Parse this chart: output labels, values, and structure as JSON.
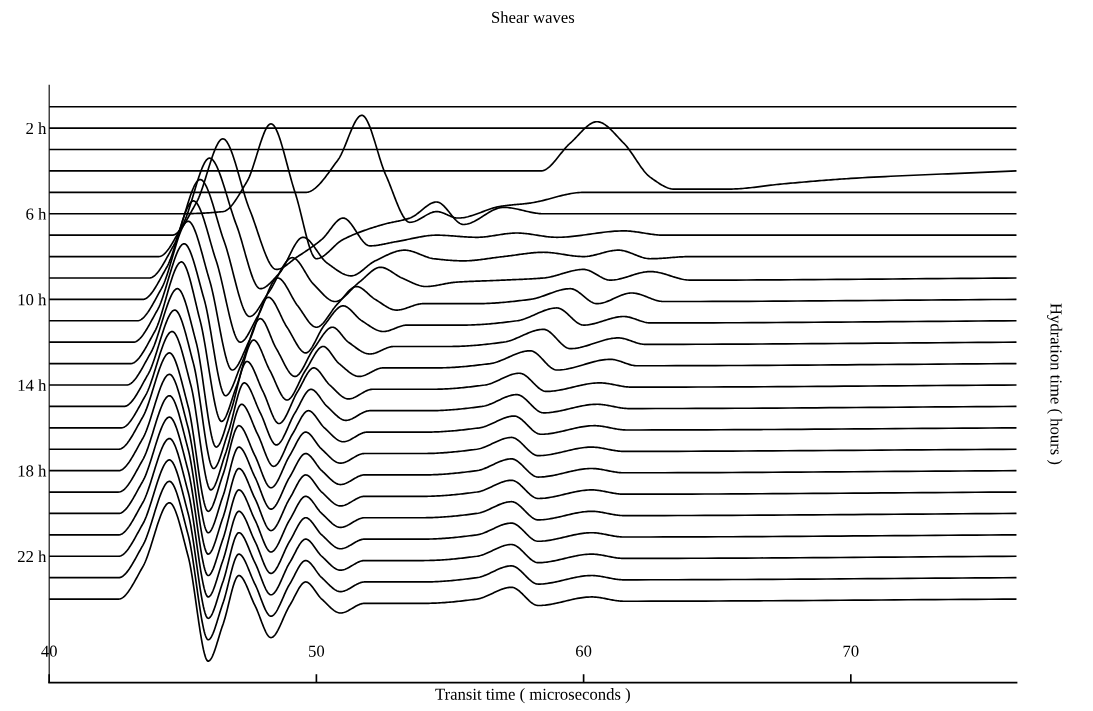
{
  "chart_data": {
    "type": "line",
    "title": "Shear waves",
    "xlabel": "Transit time ( microseconds )",
    "ylabel": "Hydration time ( hours )",
    "xlim": [
      40,
      76.2
    ],
    "xticks": [
      40,
      50,
      60,
      70
    ],
    "ylim": [
      27.9,
      0
    ],
    "yticks": [
      {
        "value": 2,
        "label": "2 h"
      },
      {
        "value": 6,
        "label": "6 h"
      },
      {
        "value": 10,
        "label": "10 h"
      },
      {
        "value": 14,
        "label": "14 h"
      },
      {
        "value": 18,
        "label": "18 h"
      },
      {
        "value": 22,
        "label": "22 h"
      }
    ],
    "grid": false,
    "x": [
      40,
      42.6,
      43.5,
      44.5,
      45.2,
      45.95,
      46.5,
      47.1,
      47.7,
      48.3,
      49.0,
      49.6,
      50.2,
      50.9,
      51.8,
      54.0,
      56.0,
      57.3,
      58.3,
      60.3,
      61.5,
      76.2
    ],
    "series": [
      {
        "color": "#000000",
        "x": [
          40,
          76.2
        ],
        "values": [
          1,
          1
        ]
      },
      {
        "color": "#000000",
        "x": [
          40,
          76.2
        ],
        "values": [
          2,
          2
        ]
      },
      {
        "color": "#000000",
        "x": [
          40,
          76.2
        ],
        "values": [
          3,
          3
        ]
      },
      {
        "color": "#000000",
        "x": [
          40,
          58.4,
          59.5,
          60.5,
          61.5,
          62.5,
          63.4,
          65.4,
          67.5,
          70,
          76.2
        ],
        "values": [
          4,
          4,
          2.7,
          1.7,
          2.7,
          4.3,
          4.85,
          4.85,
          4.6,
          4.35,
          4
        ]
      },
      {
        "color": "#000000",
        "x": [
          40,
          49.6,
          50.8,
          51.7,
          52.6,
          53.5,
          54.5,
          55.3,
          56.9,
          58,
          60,
          76.2
        ],
        "values": [
          5,
          5,
          3.5,
          1.4,
          4.2,
          6.4,
          5.9,
          6.2,
          5.65,
          5.5,
          5,
          5
        ]
      },
      {
        "color": "#000000",
        "x": [
          40,
          44.9,
          46.5,
          47.4,
          48.3,
          49.2,
          50.0,
          51.0,
          52.5,
          53.5,
          54.5,
          55.5,
          57.0,
          58.5,
          76.2
        ],
        "values": [
          6,
          6,
          5.9,
          4.5,
          1.8,
          5,
          8.1,
          7.2,
          6.5,
          6.2,
          5.45,
          6.5,
          5.7,
          6,
          6
        ]
      },
      {
        "color": "#000000",
        "x": [
          40,
          44.6,
          45.5,
          46.5,
          47.5,
          48.5,
          49.3,
          50.2,
          51.0,
          52.0,
          53.0,
          54.5,
          56,
          57.5,
          59,
          61.5,
          63,
          76.2
        ],
        "values": [
          7,
          7,
          5.5,
          2.5,
          5.8,
          8.6,
          8,
          7.2,
          6.2,
          7.5,
          7.3,
          7,
          7.1,
          6.9,
          7.1,
          6.8,
          7,
          7
        ]
      },
      {
        "color": "#000000",
        "x": [
          40,
          44.1,
          45.0,
          46.0,
          47.0,
          47.9,
          48.6,
          49.5,
          50.4,
          51.3,
          52.2,
          53.3,
          54.4,
          55.5,
          57,
          58.5,
          60,
          61.3,
          62.5,
          64,
          76.2
        ],
        "values": [
          8,
          8,
          6.5,
          3.4,
          6.5,
          9.5,
          8.8,
          7.1,
          8.3,
          8.9,
          8.2,
          7.7,
          8.1,
          8.2,
          8,
          7.8,
          8,
          7.7,
          8.1,
          8,
          8
        ]
      },
      {
        "color": "#000000",
        "x": [
          40,
          43.75,
          44.65,
          45.65,
          46.55,
          47.5,
          48.2,
          49.1,
          49.9,
          50.7,
          51.6,
          52.4,
          53.2,
          54.1,
          55.2,
          57,
          58.5,
          60,
          61,
          62.5,
          64,
          76.2
        ],
        "values": [
          9,
          9,
          7.5,
          4.4,
          7.3,
          10.8,
          9.7,
          8.05,
          9.3,
          10.1,
          9.2,
          8.5,
          9,
          9.4,
          9.2,
          9.1,
          9,
          8.6,
          9.1,
          8.7,
          9.1,
          9
        ]
      },
      {
        "color": "#000000",
        "x": [
          40,
          43.5,
          44.4,
          45.4,
          46.25,
          47.15,
          47.8,
          48.55,
          49.3,
          50.0,
          50.8,
          51.5,
          52.2,
          53.0,
          54.0,
          56,
          58,
          59.5,
          60.5,
          61.8,
          63,
          76.2
        ],
        "values": [
          10,
          10,
          8.5,
          5.4,
          8.2,
          12,
          10.8,
          9,
          10.3,
          11.3,
          10.2,
          9.4,
          10,
          10.5,
          10.2,
          10.2,
          10,
          9.5,
          10.2,
          9.7,
          10.1,
          10
        ]
      },
      {
        "color": "#000000",
        "x": [
          40,
          43.3,
          44.2,
          45.2,
          46.0,
          46.85,
          47.5,
          48.2,
          48.9,
          49.6,
          50.3,
          51.0,
          51.7,
          52.5,
          53.4,
          55.5,
          57.5,
          59.0,
          60.0,
          61.5,
          62.5,
          76.2
        ],
        "values": [
          11,
          11,
          9.5,
          6.35,
          9.1,
          13.3,
          11.9,
          9.9,
          11.3,
          12.5,
          11.2,
          10.3,
          11,
          11.5,
          11.2,
          11.2,
          11,
          10.4,
          11.2,
          10.8,
          11.1,
          11
        ]
      },
      {
        "color": "#000000",
        "x": [
          40,
          43.15,
          44.05,
          45.05,
          45.8,
          46.6,
          47.2,
          47.9,
          48.5,
          49.2,
          49.9,
          50.6,
          51.2,
          52.0,
          52.9,
          55,
          57,
          58.5,
          59.5,
          61.3,
          62.3,
          76.2
        ],
        "values": [
          12,
          12,
          10.5,
          7.4,
          10,
          14.5,
          13,
          10.9,
          12.3,
          13.6,
          12.3,
          11.3,
          12,
          12.55,
          12.2,
          12.2,
          12,
          11.4,
          12.3,
          11.8,
          12.1,
          12
        ]
      },
      {
        "color": "#000000",
        "x": [
          40,
          43.05,
          43.95,
          44.95,
          45.65,
          46.45,
          47.0,
          47.65,
          48.25,
          48.9,
          49.6,
          50.25,
          50.85,
          51.6,
          52.5,
          54.5,
          56.5,
          58.0,
          59.0,
          61.0,
          62.0,
          76.2
        ],
        "values": [
          13,
          13,
          11.5,
          8.25,
          11,
          15.7,
          14.1,
          11.9,
          13.3,
          14.7,
          13.3,
          12.2,
          13,
          13.6,
          13.2,
          13.2,
          13,
          12.4,
          13.3,
          12.8,
          13.1,
          13
        ]
      },
      {
        "color": "#000000",
        "x": [
          40,
          42.9,
          43.8,
          44.8,
          45.5,
          46.25,
          46.8,
          47.4,
          48.0,
          48.6,
          49.3,
          49.9,
          50.5,
          51.2,
          52.1,
          54.3,
          56.3,
          57.6,
          58.6,
          60.6,
          61.8,
          76.2
        ],
        "values": [
          14,
          14,
          12.5,
          9.5,
          12,
          16.9,
          15.2,
          12.9,
          14.3,
          15.8,
          14.3,
          13.2,
          14,
          14.65,
          14.2,
          14.2,
          14,
          13.45,
          14.3,
          13.9,
          14.1,
          14
        ]
      },
      {
        "color": "#000000",
        "x": [
          40,
          42.8,
          43.7,
          44.7,
          45.4,
          46.15,
          46.7,
          47.3,
          47.9,
          48.5,
          49.2,
          49.8,
          50.4,
          51.1,
          52.0,
          54.2,
          56.2,
          57.5,
          58.5,
          60.5,
          61.7,
          76.2
        ],
        "values": [
          15,
          15,
          13.5,
          10.5,
          13,
          17.9,
          16.2,
          13.9,
          15.3,
          16.8,
          15.3,
          14.2,
          15,
          15.65,
          15.2,
          15.2,
          15,
          14.45,
          15.3,
          14.9,
          15.1,
          15
        ]
      },
      {
        "color": "#000000",
        "x": [
          40,
          42.7,
          43.6,
          44.6,
          45.3,
          46.05,
          46.6,
          47.2,
          47.8,
          48.4,
          49.1,
          49.7,
          50.3,
          51.0,
          51.9,
          54.1,
          56.1,
          57.4,
          58.4,
          60.4,
          61.6,
          76.2
        ],
        "values": [
          16,
          16,
          14.5,
          11.5,
          14,
          18.9,
          17.2,
          14.9,
          16.3,
          17.8,
          16.3,
          15.2,
          16,
          16.65,
          16.2,
          16.2,
          16,
          15.45,
          16.3,
          15.9,
          16.1,
          16
        ]
      },
      {
        "color": "#000000",
        "values": [
          17,
          17,
          15.5,
          12.5,
          15,
          19.9,
          18.2,
          15.9,
          17.3,
          18.8,
          17.3,
          16.2,
          17,
          17.65,
          17.2,
          17.2,
          17,
          16.45,
          17.3,
          16.9,
          17.1,
          17
        ]
      },
      {
        "color": "#000000",
        "values": [
          18,
          18,
          16.5,
          13.5,
          16,
          20.9,
          19.2,
          16.9,
          18.3,
          19.8,
          18.3,
          17.2,
          18,
          18.65,
          18.2,
          18.2,
          18,
          17.45,
          18.3,
          17.9,
          18.1,
          18
        ]
      },
      {
        "color": "#000000",
        "values": [
          19,
          19,
          17.5,
          14.5,
          17,
          21.9,
          20.2,
          17.9,
          19.3,
          20.8,
          19.3,
          18.2,
          19,
          19.65,
          19.2,
          19.2,
          19,
          18.45,
          19.3,
          18.9,
          19.1,
          19
        ]
      },
      {
        "color": "#000000",
        "values": [
          20,
          20,
          18.5,
          15.5,
          18,
          22.9,
          21.2,
          18.9,
          20.3,
          21.8,
          20.3,
          19.2,
          20,
          20.65,
          20.2,
          20.2,
          20,
          19.45,
          20.3,
          19.9,
          20.1,
          20
        ]
      },
      {
        "color": "#000000",
        "values": [
          21,
          21,
          19.5,
          16.5,
          19,
          23.9,
          22.2,
          19.9,
          21.3,
          22.8,
          21.3,
          20.2,
          21,
          21.65,
          21.2,
          21.2,
          21,
          20.45,
          21.3,
          20.9,
          21.1,
          21
        ]
      },
      {
        "color": "#000000",
        "values": [
          22,
          22,
          20.5,
          17.5,
          20,
          24.9,
          23.2,
          20.9,
          22.3,
          23.8,
          22.3,
          21.2,
          22,
          22.65,
          22.2,
          22.2,
          22,
          21.45,
          22.3,
          21.9,
          22.1,
          22
        ]
      },
      {
        "color": "#000000",
        "values": [
          23,
          23,
          21.5,
          18.5,
          21,
          25.9,
          24.2,
          21.9,
          23.3,
          24.8,
          23.3,
          22.2,
          23,
          23.65,
          23.2,
          23.2,
          23,
          22.45,
          23.3,
          22.9,
          23.1,
          23
        ]
      },
      {
        "color": "#000000",
        "values": [
          24,
          24,
          22.5,
          19.5,
          22,
          26.9,
          25.2,
          22.9,
          24.3,
          25.8,
          24.3,
          23.2,
          24,
          24.65,
          24.2,
          24.2,
          24,
          23.45,
          24.3,
          23.9,
          24.1,
          24
        ]
      }
    ]
  }
}
